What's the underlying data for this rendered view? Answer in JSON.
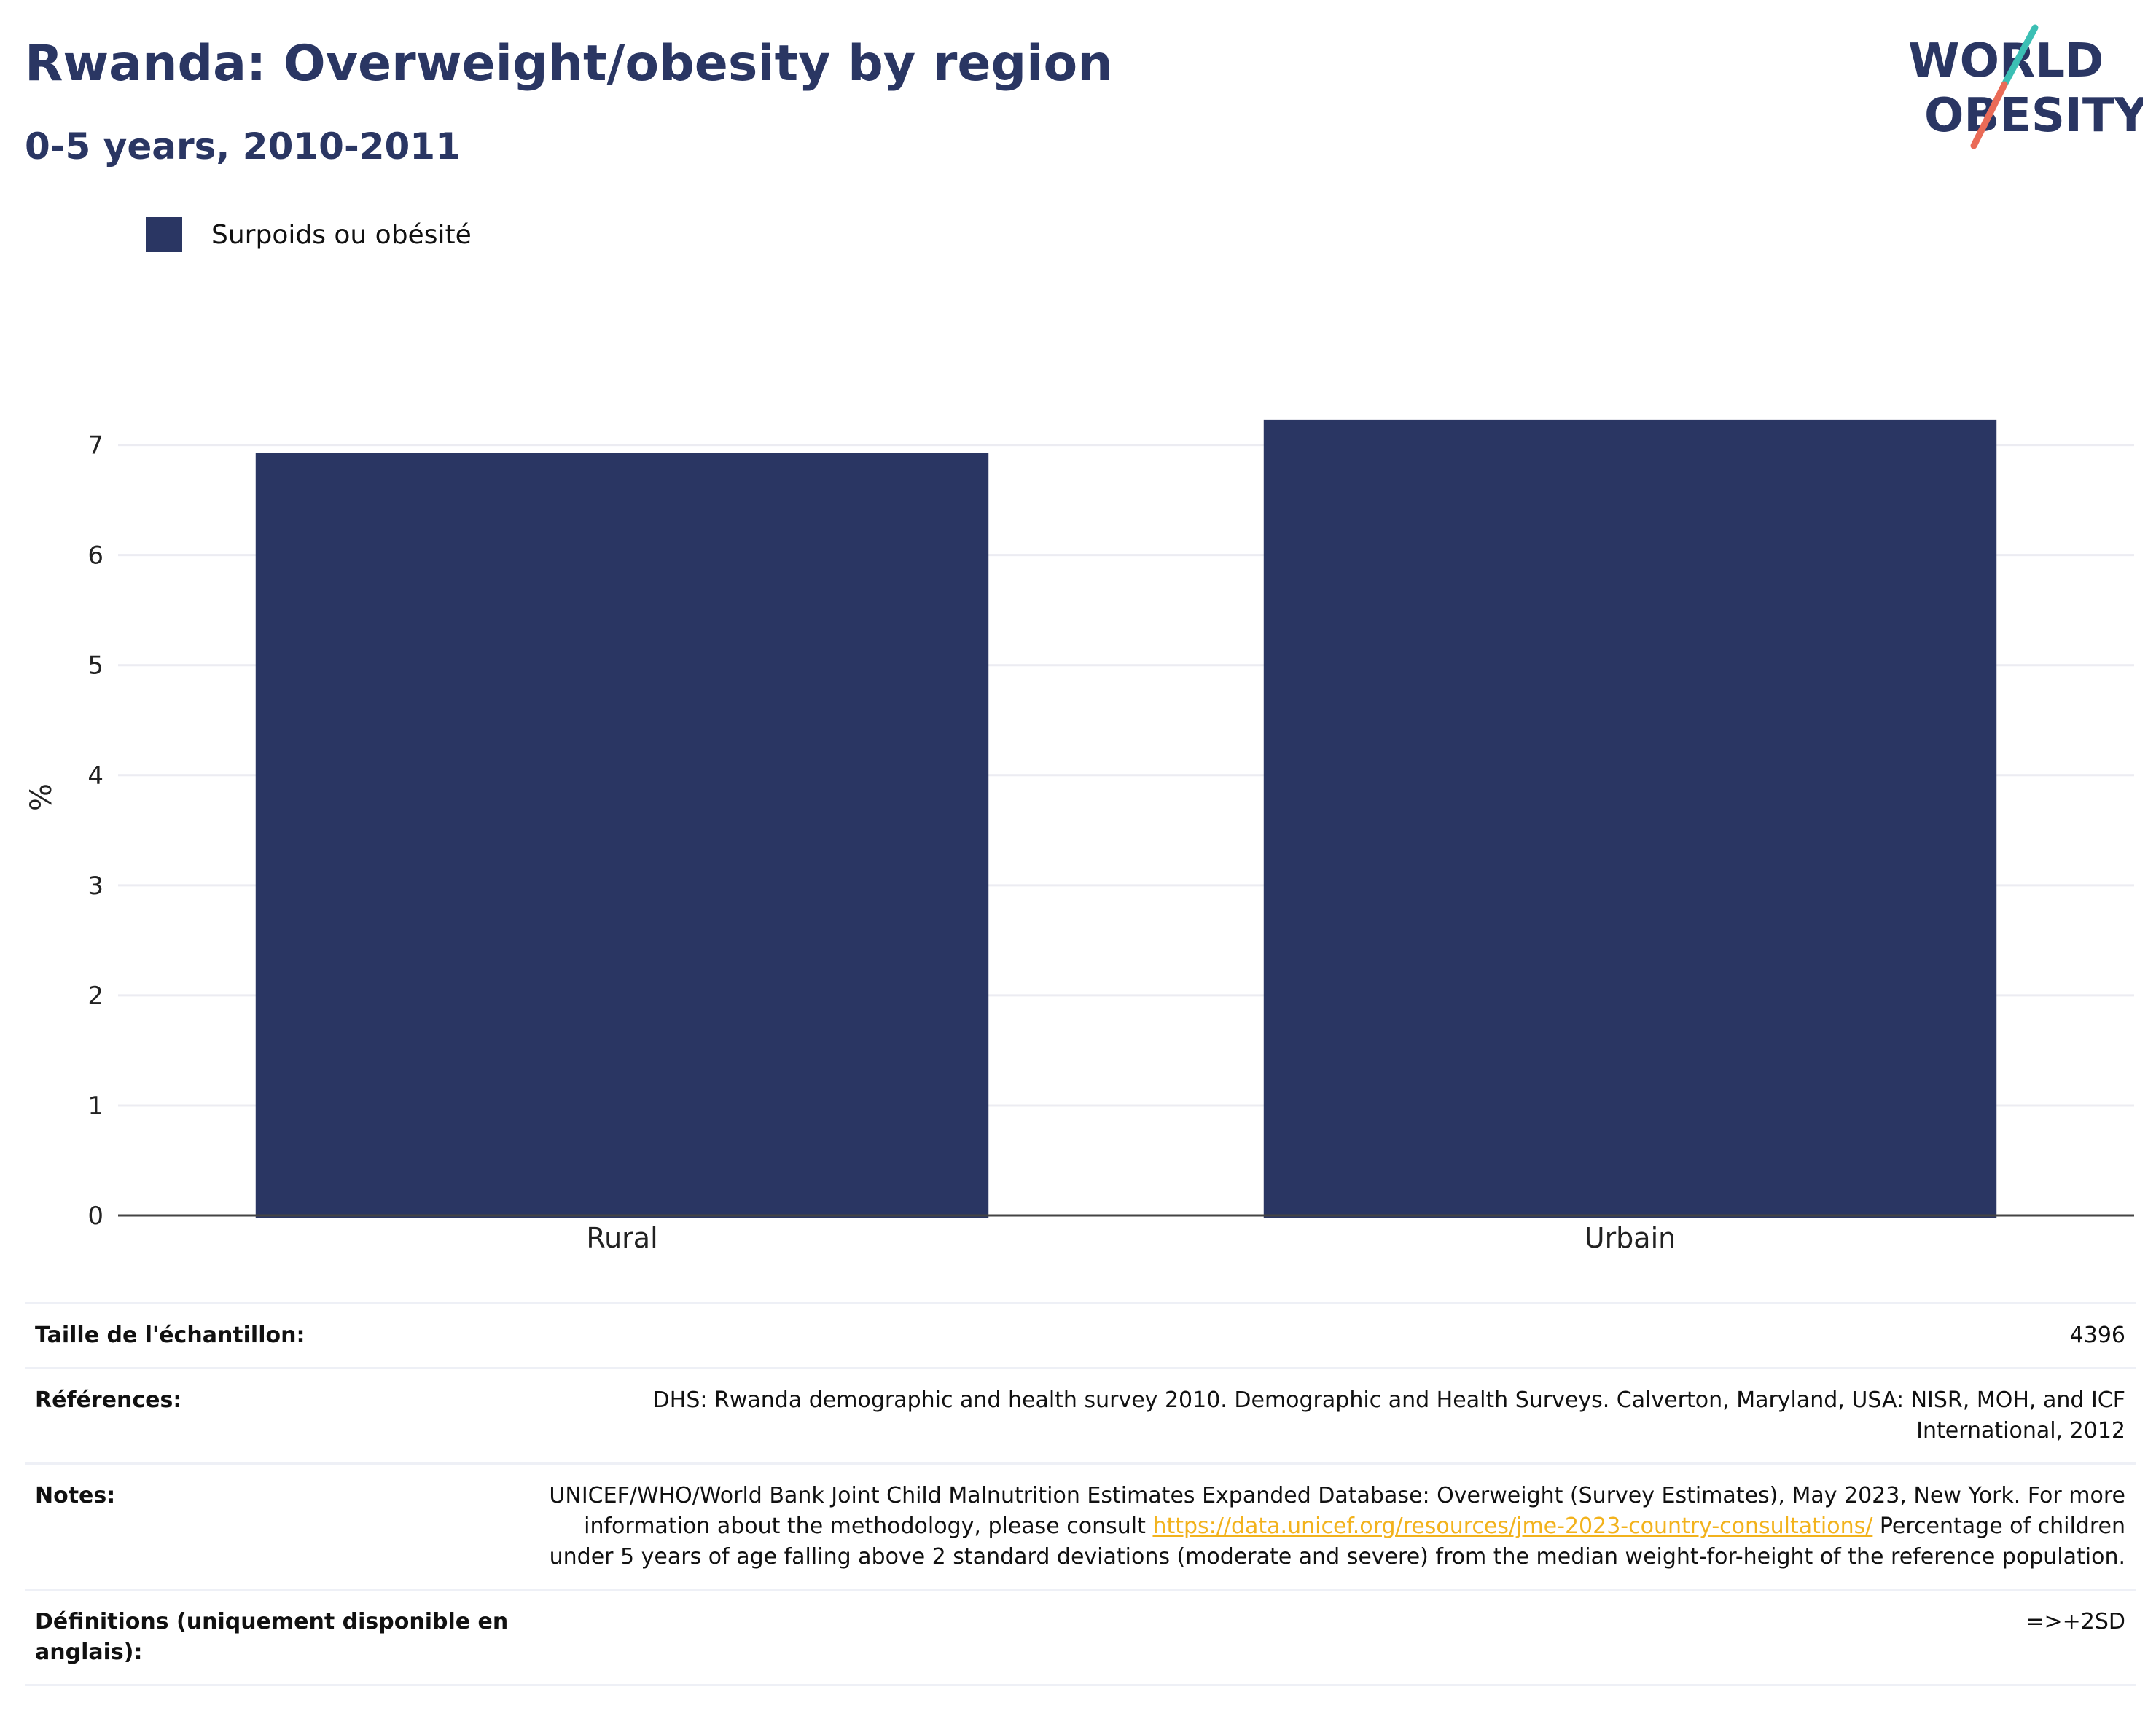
{
  "header": {
    "title": "Rwanda: Overweight/obesity by region",
    "subtitle": "0-5 years, 2010-2011"
  },
  "logo": {
    "line1": "WORLD",
    "line2": "OBESITY",
    "colors": {
      "text": "#2a3663",
      "slash_top": "#3bbfb4",
      "slash_bottom": "#ea6b57"
    }
  },
  "colors": {
    "bar": "#2a3663",
    "grid": "#ececf2",
    "axis": "#444444",
    "link": "#f2b21c"
  },
  "chart_data": {
    "type": "bar",
    "title": "Rwanda: Overweight/obesity by region",
    "subtitle": "0-5 years, 2010-2011",
    "categories": [
      "Rural",
      "Urbain"
    ],
    "series": [
      {
        "name": "Surpoids ou obésité",
        "values": [
          6.93,
          7.23
        ]
      }
    ],
    "xlabel": "",
    "ylabel": "%",
    "ylim": [
      0,
      7.6
    ],
    "yticks": [
      0,
      1,
      2,
      3,
      4,
      5,
      6,
      7
    ],
    "grid": true,
    "legend": "top-left"
  },
  "info": {
    "sample_size_label": "Taille de l'échantillon:",
    "sample_size_value": "4396",
    "references_label": "Références:",
    "references_value": "DHS: Rwanda demographic and health survey 2010. Demographic and Health Surveys. Calverton, Maryland, USA: NISR, MOH, and ICF International, 2012",
    "notes_label": "Notes:",
    "notes_text_before": "UNICEF/WHO/World Bank Joint Child Malnutrition Estimates Expanded Database: Overweight (Survey Estimates), May 2023, New York. For more information about the methodology, please consult ",
    "notes_link": "https://data.unicef.org/resources/jme-2023-country-consultations/",
    "notes_text_after": " Percentage of children under 5 years of age falling above 2 standard deviations (moderate and severe) from the median weight-for-height of the reference population.",
    "definitions_label": "Définitions (uniquement disponible en anglais):",
    "definitions_value": "=>+2SD"
  }
}
